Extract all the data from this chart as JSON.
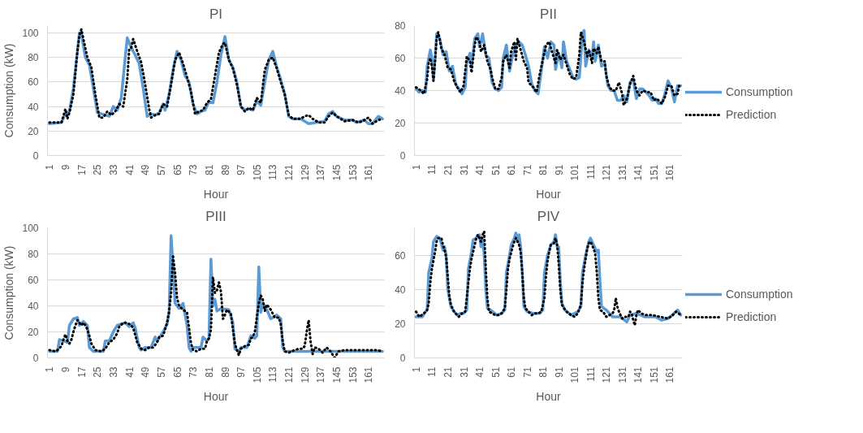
{
  "chart_data": [
    {
      "type": "line",
      "title": "PI",
      "xlabel": "Hour",
      "ylabel": "Consumption (kW)",
      "xlim": [
        0,
        169
      ],
      "xticks": [
        1,
        9,
        17,
        25,
        33,
        41,
        49,
        57,
        65,
        73,
        81,
        89,
        97,
        105,
        113,
        121,
        129,
        137,
        145,
        153,
        161
      ],
      "ylim": [
        0,
        106
      ],
      "yticks": [
        0,
        20,
        40,
        60,
        80,
        100
      ],
      "grid": "y",
      "legend": false,
      "series": [
        {
          "color": "#5b9bd5",
          "line_style": "solid",
          "x": [
            1,
            7,
            9,
            11,
            13,
            15,
            16,
            17,
            19,
            21,
            23,
            25,
            27,
            29,
            31,
            33,
            35,
            37,
            39,
            40,
            42,
            44,
            46,
            48,
            50,
            52,
            54,
            56,
            58,
            59,
            61,
            63,
            65,
            67,
            69,
            71,
            73,
            75,
            77,
            79,
            81,
            83,
            85,
            87,
            89,
            91,
            93,
            95,
            97,
            99,
            101,
            103,
            105,
            107,
            109,
            111,
            113,
            115,
            117,
            119,
            121,
            123,
            127,
            131,
            135,
            139,
            141,
            143,
            145,
            149,
            153,
            155,
            159,
            161,
            163,
            165,
            166,
            168
          ],
          "values": [
            26,
            27,
            34,
            36,
            55,
            85,
            100,
            99,
            80,
            74,
            55,
            35,
            34,
            33,
            32,
            40,
            37,
            47,
            80,
            96,
            88,
            82,
            75,
            55,
            32,
            34,
            33,
            35,
            42,
            37,
            50,
            70,
            85,
            78,
            65,
            60,
            42,
            34,
            36,
            37,
            44,
            43,
            60,
            82,
            97,
            78,
            72,
            60,
            40,
            37,
            38,
            37,
            44,
            41,
            60,
            78,
            85,
            72,
            62,
            50,
            32,
            30,
            30,
            26,
            27,
            28,
            34,
            36,
            32,
            29,
            29,
            27,
            29,
            26,
            26,
            30,
            32,
            30
          ]
        },
        {
          "color": "#000000",
          "line_style": "dotted",
          "x": [
            1,
            4,
            7,
            9,
            10,
            11,
            13,
            15,
            16,
            17,
            18,
            20,
            22,
            24,
            26,
            28,
            30,
            32,
            34,
            36,
            38,
            40,
            41,
            42,
            43,
            45,
            47,
            49,
            51,
            52,
            54,
            56,
            58,
            60,
            62,
            64,
            66,
            68,
            70,
            72,
            74,
            76,
            78,
            80,
            82,
            84,
            86,
            88,
            89,
            91,
            93,
            95,
            97,
            99,
            101,
            103,
            105,
            107,
            109,
            111,
            113,
            115,
            117,
            119,
            121,
            123,
            127,
            129,
            131,
            133,
            136,
            139,
            141,
            143,
            145,
            149,
            153,
            156,
            158,
            160,
            161,
            163,
            166,
            168
          ],
          "values": [
            27,
            27,
            27,
            38,
            30,
            35,
            50,
            85,
            98,
            103,
            95,
            80,
            72,
            50,
            31,
            31,
            36,
            33,
            36,
            42,
            40,
            62,
            87,
            88,
            95,
            85,
            76,
            58,
            38,
            31,
            33,
            34,
            42,
            40,
            58,
            78,
            84,
            75,
            64,
            52,
            34,
            36,
            37,
            43,
            46,
            65,
            84,
            91,
            92,
            78,
            71,
            58,
            40,
            36,
            39,
            37,
            47,
            43,
            70,
            78,
            80,
            71,
            60,
            50,
            33,
            30,
            30,
            32,
            33,
            30,
            27,
            27,
            32,
            35,
            32,
            28,
            29,
            27,
            28,
            30,
            31,
            26,
            29,
            30
          ]
        }
      ]
    },
    {
      "type": "line",
      "title": "PII",
      "xlabel": "Hour",
      "xlim": [
        0,
        169
      ],
      "xticks": [
        1,
        11,
        21,
        31,
        41,
        51,
        61,
        71,
        81,
        91,
        101,
        111,
        121,
        131,
        141,
        151,
        161
      ],
      "ylim": [
        0,
        80
      ],
      "yticks": [
        0,
        20,
        40,
        60,
        80
      ],
      "grid": "y",
      "legend": "right",
      "series": [
        {
          "name": "Consumption",
          "color": "#5b9bd5",
          "line_style": "solid",
          "x": [
            1,
            3,
            5,
            7,
            8,
            10,
            11,
            12,
            13,
            14,
            16,
            18,
            20,
            22,
            24,
            26,
            28,
            30,
            32,
            33,
            35,
            36,
            38,
            40,
            41,
            42,
            43,
            45,
            47,
            49,
            51,
            53,
            55,
            56,
            58,
            60,
            62,
            64,
            66,
            68,
            70,
            72,
            74,
            76,
            78,
            80,
            82,
            84,
            86,
            88,
            89,
            91,
            93,
            94,
            96,
            98,
            100,
            102,
            104,
            106,
            107,
            108,
            110,
            112,
            113,
            114,
            116,
            118,
            120,
            122,
            124,
            126,
            128,
            130,
            132,
            134,
            136,
            138,
            140,
            142,
            144,
            146,
            148,
            150,
            152,
            154,
            156,
            158,
            160,
            162,
            164,
            166,
            168
          ],
          "values": [
            41,
            39,
            40,
            39,
            55,
            65,
            60,
            47,
            60,
            75,
            72,
            62,
            64,
            52,
            55,
            44,
            41,
            38,
            42,
            57,
            63,
            55,
            72,
            75,
            67,
            70,
            75,
            62,
            60,
            45,
            41,
            40,
            42,
            60,
            68,
            52,
            62,
            68,
            70,
            68,
            62,
            55,
            44,
            40,
            38,
            52,
            67,
            60,
            70,
            68,
            53,
            63,
            54,
            70,
            58,
            53,
            48,
            47,
            48,
            75,
            77,
            55,
            65,
            60,
            70,
            58,
            68,
            55,
            57,
            43,
            40,
            40,
            34,
            34,
            37,
            33,
            45,
            47,
            35,
            41,
            41,
            39,
            37,
            34,
            35,
            32,
            32,
            38,
            46,
            42,
            33,
            43,
            43
          ]
        },
        {
          "name": "Prediction",
          "color": "#000000",
          "line_style": "dotted",
          "x": [
            1,
            4,
            6,
            8,
            9,
            10,
            11,
            12,
            13,
            14,
            15,
            17,
            19,
            21,
            23,
            25,
            27,
            29,
            31,
            33,
            35,
            36,
            38,
            39,
            41,
            42,
            44,
            46,
            48,
            49,
            51,
            53,
            55,
            56,
            58,
            60,
            61,
            63,
            64,
            65,
            67,
            69,
            71,
            72,
            75,
            77,
            79,
            81,
            83,
            85,
            87,
            89,
            90,
            92,
            94,
            96,
            98,
            100,
            102,
            104,
            105,
            107,
            109,
            110,
            112,
            113,
            115,
            116,
            118,
            120,
            121,
            123,
            125,
            127,
            129,
            131,
            132,
            134,
            136,
            138,
            140,
            142,
            144,
            147,
            149,
            151,
            153,
            156,
            158,
            160,
            162,
            164,
            166,
            167
          ],
          "values": [
            42,
            40,
            38,
            47,
            57,
            60,
            55,
            46,
            58,
            72,
            76,
            66,
            62,
            54,
            53,
            46,
            42,
            39,
            43,
            61,
            58,
            51,
            68,
            73,
            70,
            64,
            68,
            58,
            53,
            48,
            41,
            41,
            48,
            58,
            62,
            54,
            64,
            70,
            59,
            72,
            65,
            58,
            54,
            45,
            42,
            39,
            50,
            59,
            68,
            70,
            63,
            57,
            65,
            59,
            62,
            56,
            50,
            47,
            48,
            62,
            76,
            70,
            61,
            65,
            57,
            66,
            63,
            67,
            58,
            58,
            49,
            42,
            40,
            40,
            45,
            38,
            31,
            35,
            44,
            49,
            40,
            37,
            40,
            39,
            39,
            34,
            35,
            32,
            36,
            43,
            43,
            37,
            38,
            43
          ]
        }
      ]
    },
    {
      "type": "line",
      "title": "PIII",
      "xlabel": "Hour",
      "ylabel": "Consumption (kW)",
      "xlim": [
        0,
        169
      ],
      "xticks": [
        1,
        9,
        17,
        25,
        33,
        41,
        49,
        57,
        65,
        73,
        81,
        89,
        97,
        105,
        113,
        121,
        129,
        137,
        145,
        153,
        161
      ],
      "ylim": [
        0,
        100
      ],
      "yticks": [
        0,
        20,
        40,
        60,
        80,
        100
      ],
      "grid": "y",
      "legend": false,
      "series": [
        {
          "color": "#5b9bd5",
          "line_style": "solid",
          "x": [
            1,
            5,
            6,
            8,
            10,
            11,
            13,
            15,
            16,
            18,
            20,
            21,
            23,
            28,
            29,
            31,
            33,
            35,
            39,
            41,
            43,
            44,
            46,
            47,
            49,
            52,
            54,
            55,
            58,
            60,
            61,
            62,
            64,
            66,
            68,
            70,
            71,
            72,
            73,
            77,
            78,
            80,
            81,
            82,
            83,
            84,
            85,
            87,
            91,
            93,
            94,
            96,
            97,
            100,
            102,
            104,
            105,
            106,
            107,
            108,
            110,
            112,
            115,
            117,
            118,
            119,
            134,
            168
          ],
          "values": [
            5,
            5,
            14,
            13,
            12,
            25,
            30,
            31,
            25,
            28,
            25,
            8,
            5,
            5,
            13,
            13,
            20,
            25,
            27,
            24,
            27,
            23,
            8,
            6,
            8,
            8,
            16,
            13,
            20,
            26,
            35,
            94,
            42,
            38,
            42,
            25,
            8,
            5,
            8,
            8,
            16,
            13,
            15,
            76,
            40,
            45,
            36,
            38,
            37,
            27,
            7,
            5,
            8,
            8,
            17,
            15,
            17,
            70,
            35,
            42,
            37,
            30,
            33,
            30,
            8,
            5,
            5,
            5
          ]
        },
        {
          "color": "#000000",
          "line_style": "dotted",
          "x": [
            1,
            4,
            5,
            7,
            8,
            9,
            10,
            11,
            12,
            13,
            14,
            15,
            17,
            18,
            19,
            20,
            21,
            22,
            24,
            27,
            29,
            31,
            33,
            35,
            36,
            38,
            40,
            42,
            43,
            45,
            47,
            49,
            51,
            53,
            55,
            56,
            58,
            59,
            60,
            61,
            62,
            63,
            64,
            65,
            66,
            68,
            70,
            71,
            72,
            73,
            75,
            77,
            79,
            80,
            81,
            82,
            83,
            84,
            85,
            86,
            87,
            88,
            89,
            90,
            92,
            93,
            94,
            95,
            96,
            97,
            99,
            101,
            102,
            103,
            104,
            105,
            106,
            107,
            108,
            109,
            110,
            112,
            114,
            116,
            117,
            118,
            119,
            121,
            124,
            126,
            128,
            129,
            130,
            131,
            132,
            133,
            134,
            136,
            138,
            140,
            142,
            144,
            146,
            149,
            153,
            157,
            161,
            165,
            168
          ],
          "values": [
            6,
            5,
            6,
            9,
            14,
            18,
            13,
            11,
            14,
            20,
            25,
            29,
            25,
            27,
            25,
            22,
            17,
            11,
            6,
            5,
            7,
            12,
            14,
            19,
            24,
            27,
            27,
            25,
            23,
            12,
            7,
            6,
            8,
            8,
            12,
            16,
            17,
            22,
            27,
            36,
            50,
            78,
            65,
            46,
            40,
            37,
            35,
            23,
            11,
            6,
            5,
            7,
            7,
            13,
            15,
            22,
            62,
            50,
            52,
            58,
            51,
            30,
            33,
            37,
            34,
            22,
            11,
            6,
            2,
            7,
            9,
            10,
            15,
            16,
            20,
            31,
            42,
            48,
            45,
            36,
            41,
            37,
            31,
            31,
            26,
            13,
            5,
            4,
            6,
            7,
            7,
            9,
            20,
            29,
            12,
            3,
            8,
            7,
            4,
            8,
            5,
            0,
            5,
            6,
            6,
            6,
            6,
            6,
            5
          ]
        }
      ]
    },
    {
      "type": "line",
      "title": "PIV",
      "xlabel": "Hour",
      "xlim": [
        0,
        169
      ],
      "xticks": [
        1,
        11,
        21,
        31,
        41,
        51,
        61,
        71,
        81,
        91,
        101,
        111,
        121,
        131,
        141,
        151,
        161
      ],
      "ylim": [
        0,
        76
      ],
      "yticks": [
        0,
        20,
        40,
        60
      ],
      "grid": "y",
      "legend": "right",
      "series": [
        {
          "name": "Consumption",
          "color": "#5b9bd5",
          "line_style": "solid",
          "x": [
            1,
            5,
            7,
            8,
            9,
            11,
            12,
            14,
            16,
            18,
            19,
            20,
            21,
            23,
            25,
            27,
            29,
            31,
            33,
            34,
            36,
            37,
            39,
            41,
            42,
            43,
            44,
            45,
            46,
            48,
            52,
            55,
            57,
            58,
            60,
            61,
            63,
            64,
            65,
            66,
            67,
            68,
            69,
            71,
            75,
            79,
            81,
            82,
            84,
            86,
            88,
            89,
            90,
            91,
            92,
            93,
            95,
            99,
            103,
            105,
            106,
            108,
            110,
            111,
            113,
            115,
            116,
            117,
            118,
            121,
            125,
            130,
            134,
            136,
            140,
            145,
            152,
            156,
            160,
            165,
            166,
            168
          ],
          "values": [
            24,
            24,
            27,
            28,
            50,
            58,
            68,
            71,
            70,
            63,
            65,
            60,
            40,
            30,
            27,
            25,
            26,
            26,
            28,
            52,
            62,
            69,
            70,
            72,
            65,
            70,
            60,
            40,
            29,
            28,
            25,
            26,
            28,
            50,
            60,
            66,
            70,
            73,
            68,
            72,
            65,
            50,
            30,
            27,
            26,
            26,
            28,
            50,
            60,
            66,
            68,
            72,
            65,
            65,
            45,
            32,
            28,
            25,
            27,
            30,
            50,
            60,
            68,
            70,
            66,
            62,
            63,
            45,
            30,
            28,
            24,
            24,
            21,
            25,
            26,
            24,
            24,
            22,
            23,
            27,
            28,
            25
          ]
        },
        {
          "name": "Prediction",
          "color": "#000000",
          "line_style": "dotted",
          "x": [
            1,
            3,
            6,
            8,
            9,
            10,
            11,
            12,
            13,
            14,
            15,
            17,
            18,
            19,
            20,
            21,
            22,
            23,
            25,
            27,
            28,
            30,
            32,
            33,
            34,
            35,
            36,
            37,
            38,
            39,
            40,
            42,
            43,
            44,
            45,
            46,
            47,
            49,
            51,
            53,
            55,
            57,
            58,
            59,
            60,
            62,
            63,
            64,
            66,
            67,
            68,
            69,
            70,
            72,
            74,
            76,
            78,
            80,
            82,
            83,
            84,
            85,
            86,
            88,
            89,
            90,
            91,
            92,
            93,
            95,
            97,
            99,
            101,
            103,
            105,
            106,
            107,
            108,
            109,
            110,
            111,
            113,
            114,
            115,
            116,
            117,
            119,
            121,
            123,
            125,
            126,
            127,
            128,
            129,
            131,
            133,
            135,
            136,
            137,
            138,
            139,
            140,
            141,
            143,
            146,
            150,
            155,
            160,
            163,
            165,
            168
          ],
          "values": [
            27,
            24,
            26,
            28,
            32,
            44,
            52,
            57,
            62,
            68,
            70,
            70,
            66,
            63,
            59,
            48,
            36,
            31,
            27,
            25,
            24,
            26,
            27,
            35,
            44,
            52,
            58,
            62,
            66,
            70,
            72,
            68,
            72,
            74,
            52,
            35,
            27,
            26,
            25,
            25,
            26,
            29,
            40,
            52,
            58,
            65,
            68,
            70,
            66,
            62,
            50,
            35,
            29,
            27,
            25,
            26,
            26,
            27,
            35,
            48,
            57,
            62,
            66,
            67,
            70,
            66,
            55,
            40,
            31,
            28,
            26,
            25,
            24,
            26,
            31,
            44,
            52,
            58,
            64,
            67,
            68,
            64,
            61,
            50,
            35,
            28,
            27,
            24,
            25,
            26,
            28,
            35,
            30,
            27,
            23,
            24,
            24,
            27,
            26,
            22,
            19,
            25,
            28,
            26,
            25,
            25,
            24,
            23,
            25,
            27,
            25
          ]
        }
      ]
    }
  ]
}
